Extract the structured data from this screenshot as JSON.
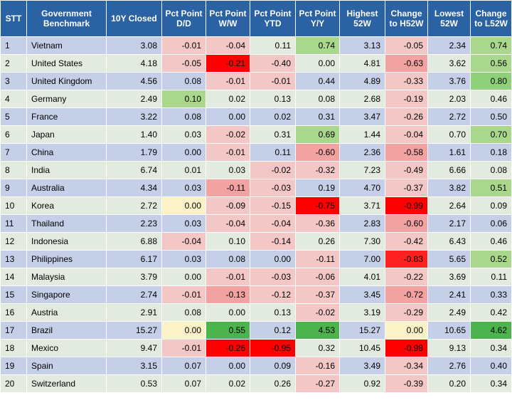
{
  "colors": {
    "header_bg": "#2a62a3",
    "row_odd": "#c5cfe8",
    "row_even": "#e3ebe0",
    "neg_light": "#f4c7c7",
    "neg_mid": "#f3a2a2",
    "neg_strong": "#ff0000",
    "pos_light": "#d8ecc8",
    "pos_mid": "#a9d88c",
    "pos_strong": "#4db34d",
    "neutral_yellow": "#fbf2c8"
  },
  "table": {
    "headers": [
      "STT",
      "Government Benchmark",
      "10Y Closed",
      "Pct Point D/D",
      "Pct Point W/W",
      "Pct Point YTD",
      "Pct Point Y/Y",
      "Highest 52W",
      "Change to H52W",
      "Lowest 52W",
      "Change to L52W"
    ],
    "rows": [
      {
        "stt": "1",
        "country": "Vietnam",
        "closed": "3.08",
        "dd": "-0.01",
        "ww": "-0.04",
        "ytd": "0.11",
        "yy": "0.74",
        "h52": "3.13",
        "ch52": "-0.05",
        "l52": "2.34",
        "cl52": "0.74",
        "bg": {
          "dd": "#f4c7c7",
          "ww": "#f4c7c7",
          "ytd": "#e3ebe0",
          "yy": "#a9d88c",
          "ch52": "#f4c7c7",
          "cl52": "#a9d88c"
        }
      },
      {
        "stt": "2",
        "country": "United States",
        "closed": "4.18",
        "dd": "-0.05",
        "ww": "-0.21",
        "ytd": "-0.40",
        "yy": "0.00",
        "h52": "4.81",
        "ch52": "-0.63",
        "l52": "3.62",
        "cl52": "0.56",
        "bg": {
          "dd": "#f4c7c7",
          "ww": "#ff0000",
          "ytd": "#f4c7c7",
          "yy": "#e3ebe0",
          "ch52": "#f3a2a2",
          "cl52": "#a9d88c"
        }
      },
      {
        "stt": "3",
        "country": "United Kingdom",
        "closed": "4.56",
        "dd": "0.08",
        "ww": "-0.01",
        "ytd": "-0.01",
        "yy": "0.44",
        "h52": "4.89",
        "ch52": "-0.33",
        "l52": "3.76",
        "cl52": "0.80",
        "bg": {
          "dd": "#c5cfe8",
          "ww": "#f4c7c7",
          "ytd": "#f4c7c7",
          "yy": "#c5cfe8",
          "ch52": "#f4c7c7",
          "cl52": "#8fd17a"
        }
      },
      {
        "stt": "4",
        "country": "Germany",
        "closed": "2.49",
        "dd": "0.10",
        "ww": "0.02",
        "ytd": "0.13",
        "yy": "0.08",
        "h52": "2.68",
        "ch52": "-0.19",
        "l52": "2.03",
        "cl52": "0.46",
        "bg": {
          "dd": "#a9d88c",
          "ww": "#e3ebe0",
          "ytd": "#e3ebe0",
          "yy": "#e3ebe0",
          "ch52": "#f4c7c7",
          "cl52": "#e3ebe0"
        }
      },
      {
        "stt": "5",
        "country": "France",
        "closed": "3.22",
        "dd": "0.08",
        "ww": "0.00",
        "ytd": "0.02",
        "yy": "0.31",
        "h52": "3.47",
        "ch52": "-0.26",
        "l52": "2.72",
        "cl52": "0.50",
        "bg": {
          "dd": "#c5cfe8",
          "ww": "#c5cfe8",
          "ytd": "#c5cfe8",
          "yy": "#c5cfe8",
          "ch52": "#f4c7c7",
          "cl52": "#c5cfe8"
        }
      },
      {
        "stt": "6",
        "country": "Japan",
        "closed": "1.40",
        "dd": "0.03",
        "ww": "-0.02",
        "ytd": "0.31",
        "yy": "0.69",
        "h52": "1.44",
        "ch52": "-0.04",
        "l52": "0.70",
        "cl52": "0.70",
        "bg": {
          "dd": "#e3ebe0",
          "ww": "#f4c7c7",
          "ytd": "#e3ebe0",
          "yy": "#a9d88c",
          "ch52": "#f4c7c7",
          "cl52": "#a9d88c"
        }
      },
      {
        "stt": "7",
        "country": "China",
        "closed": "1.79",
        "dd": "0.00",
        "ww": "-0.01",
        "ytd": "0.11",
        "yy": "-0.60",
        "h52": "2.36",
        "ch52": "-0.58",
        "l52": "1.61",
        "cl52": "0.18",
        "bg": {
          "dd": "#c5cfe8",
          "ww": "#f4c7c7",
          "ytd": "#c5cfe8",
          "yy": "#f3a2a2",
          "ch52": "#f3a2a2",
          "cl52": "#c5cfe8"
        }
      },
      {
        "stt": "8",
        "country": "India",
        "closed": "6.74",
        "dd": "0.01",
        "ww": "0.03",
        "ytd": "-0.02",
        "yy": "-0.32",
        "h52": "7.23",
        "ch52": "-0.49",
        "l52": "6.66",
        "cl52": "0.08",
        "bg": {
          "dd": "#e3ebe0",
          "ww": "#e3ebe0",
          "ytd": "#f4c7c7",
          "yy": "#f4c7c7",
          "ch52": "#f4c7c7",
          "cl52": "#e3ebe0"
        }
      },
      {
        "stt": "9",
        "country": "Australia",
        "closed": "4.34",
        "dd": "0.03",
        "ww": "-0.11",
        "ytd": "-0.03",
        "yy": "0.19",
        "h52": "4.70",
        "ch52": "-0.37",
        "l52": "3.82",
        "cl52": "0.51",
        "bg": {
          "dd": "#c5cfe8",
          "ww": "#f3a2a2",
          "ytd": "#f4c7c7",
          "yy": "#c5cfe8",
          "ch52": "#f4c7c7",
          "cl52": "#a9d88c"
        }
      },
      {
        "stt": "10",
        "country": "Korea",
        "closed": "2.72",
        "dd": "0.00",
        "ww": "-0.09",
        "ytd": "-0.15",
        "yy": "-0.75",
        "h52": "3.71",
        "ch52": "-0.99",
        "l52": "2.64",
        "cl52": "0.09",
        "bg": {
          "dd": "#fbf2c8",
          "ww": "#f4c7c7",
          "ytd": "#f4c7c7",
          "yy": "#ff0000",
          "ch52": "#ff0000",
          "cl52": "#e3ebe0"
        }
      },
      {
        "stt": "11",
        "country": "Thailand",
        "closed": "2.23",
        "dd": "0.03",
        "ww": "-0.04",
        "ytd": "-0.04",
        "yy": "-0.36",
        "h52": "2.83",
        "ch52": "-0.60",
        "l52": "2.17",
        "cl52": "0.06",
        "bg": {
          "dd": "#c5cfe8",
          "ww": "#f4c7c7",
          "ytd": "#f4c7c7",
          "yy": "#f4c7c7",
          "ch52": "#f3a2a2",
          "cl52": "#c5cfe8"
        }
      },
      {
        "stt": "12",
        "country": "Indonesia",
        "closed": "6.88",
        "dd": "-0.04",
        "ww": "0.10",
        "ytd": "-0.14",
        "yy": "0.26",
        "h52": "7.30",
        "ch52": "-0.42",
        "l52": "6.43",
        "cl52": "0.46",
        "bg": {
          "dd": "#f4c7c7",
          "ww": "#e3ebe0",
          "ytd": "#f4c7c7",
          "yy": "#e3ebe0",
          "ch52": "#f4c7c7",
          "cl52": "#e3ebe0"
        }
      },
      {
        "stt": "13",
        "country": "Philippines",
        "closed": "6.17",
        "dd": "0.03",
        "ww": "0.08",
        "ytd": "0.00",
        "yy": "-0.11",
        "h52": "7.00",
        "ch52": "-0.83",
        "l52": "5.65",
        "cl52": "0.52",
        "bg": {
          "dd": "#c5cfe8",
          "ww": "#c5cfe8",
          "ytd": "#c5cfe8",
          "yy": "#f4c7c7",
          "ch52": "#ff2020",
          "cl52": "#a9d88c"
        }
      },
      {
        "stt": "14",
        "country": "Malaysia",
        "closed": "3.79",
        "dd": "0.00",
        "ww": "-0.01",
        "ytd": "-0.03",
        "yy": "-0.06",
        "h52": "4.01",
        "ch52": "-0.22",
        "l52": "3.69",
        "cl52": "0.11",
        "bg": {
          "dd": "#e3ebe0",
          "ww": "#f4c7c7",
          "ytd": "#f4c7c7",
          "yy": "#f4c7c7",
          "ch52": "#f4c7c7",
          "cl52": "#e3ebe0"
        }
      },
      {
        "stt": "15",
        "country": "Singapore",
        "closed": "2.74",
        "dd": "-0.01",
        "ww": "-0.13",
        "ytd": "-0.12",
        "yy": "-0.37",
        "h52": "3.45",
        "ch52": "-0.72",
        "l52": "2.41",
        "cl52": "0.33",
        "bg": {
          "dd": "#f4c7c7",
          "ww": "#f3a2a2",
          "ytd": "#f4c7c7",
          "yy": "#f4c7c7",
          "ch52": "#f3a2a2",
          "cl52": "#c5cfe8"
        }
      },
      {
        "stt": "16",
        "country": "Austria",
        "closed": "2.91",
        "dd": "0.08",
        "ww": "0.00",
        "ytd": "0.13",
        "yy": "-0.02",
        "h52": "3.19",
        "ch52": "-0.29",
        "l52": "2.49",
        "cl52": "0.42",
        "bg": {
          "dd": "#e3ebe0",
          "ww": "#e3ebe0",
          "ytd": "#e3ebe0",
          "yy": "#f4c7c7",
          "ch52": "#f4c7c7",
          "cl52": "#e3ebe0"
        }
      },
      {
        "stt": "17",
        "country": "Brazil",
        "closed": "15.27",
        "dd": "0.00",
        "ww": "0.55",
        "ytd": "0.12",
        "yy": "4.53",
        "h52": "15.27",
        "ch52": "0.00",
        "l52": "10.65",
        "cl52": "4.62",
        "bg": {
          "dd": "#fbf2c8",
          "ww": "#4db34d",
          "ytd": "#c5cfe8",
          "yy": "#4db34d",
          "ch52": "#fbf2c8",
          "cl52": "#4db34d"
        }
      },
      {
        "stt": "18",
        "country": "Mexico",
        "closed": "9.47",
        "dd": "-0.01",
        "ww": "-0.26",
        "ytd": "-0.95",
        "yy": "0.32",
        "h52": "10.45",
        "ch52": "-0.98",
        "l52": "9.13",
        "cl52": "0.34",
        "bg": {
          "dd": "#f4c7c7",
          "ww": "#ff0000",
          "ytd": "#ff0000",
          "yy": "#e3ebe0",
          "ch52": "#ff0000",
          "cl52": "#e3ebe0"
        }
      },
      {
        "stt": "19",
        "country": "Spain",
        "closed": "3.15",
        "dd": "0.07",
        "ww": "0.00",
        "ytd": "0.09",
        "yy": "-0.16",
        "h52": "3.49",
        "ch52": "-0.34",
        "l52": "2.76",
        "cl52": "0.40",
        "bg": {
          "dd": "#c5cfe8",
          "ww": "#c5cfe8",
          "ytd": "#c5cfe8",
          "yy": "#f4c7c7",
          "ch52": "#f4c7c7",
          "cl52": "#c5cfe8"
        }
      },
      {
        "stt": "20",
        "country": "Switzerland",
        "closed": "0.53",
        "dd": "0.07",
        "ww": "0.02",
        "ytd": "0.26",
        "yy": "-0.27",
        "h52": "0.92",
        "ch52": "-0.39",
        "l52": "0.20",
        "cl52": "0.34",
        "bg": {
          "dd": "#e3ebe0",
          "ww": "#e3ebe0",
          "ytd": "#e3ebe0",
          "yy": "#f4c7c7",
          "ch52": "#f4c7c7",
          "cl52": "#e3ebe0"
        }
      }
    ]
  }
}
